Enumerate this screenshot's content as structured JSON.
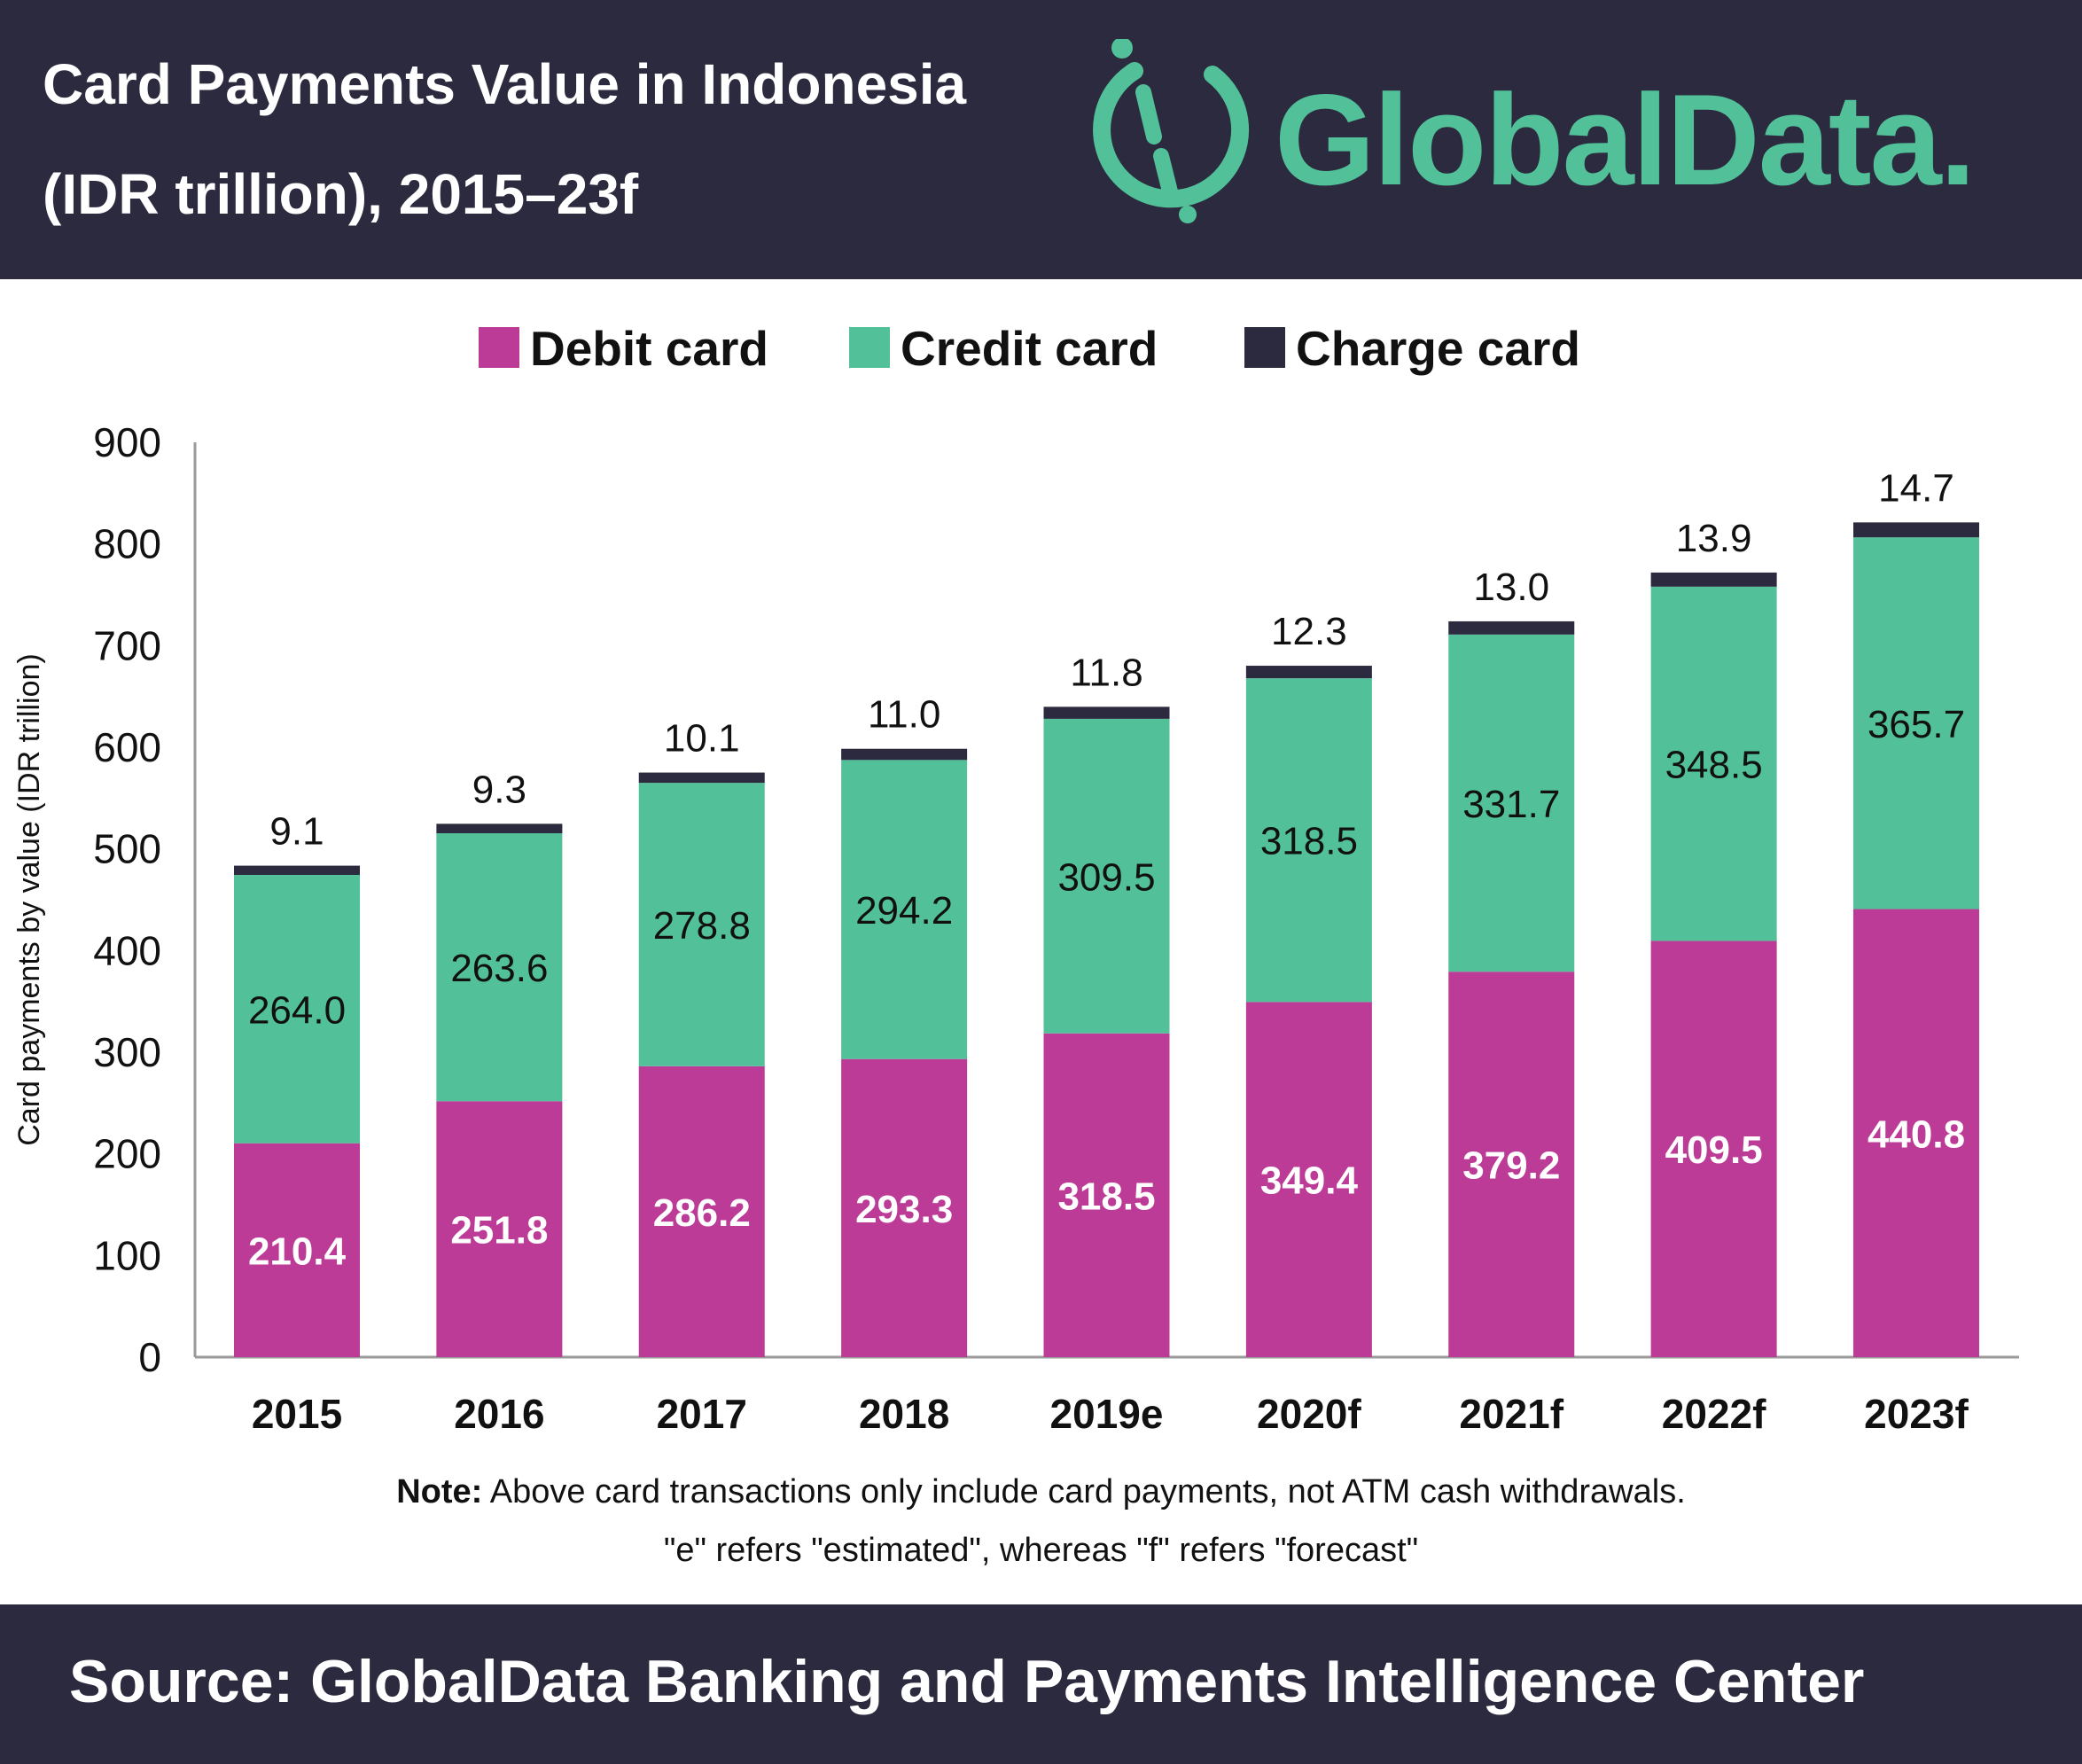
{
  "header": {
    "title_line1": "Card Payments Value in Indonesia",
    "title_line2": "(IDR trillion), 2015–23f",
    "logo_text": "GlobalData."
  },
  "legend": {
    "debit": "Debit card",
    "credit": "Credit card",
    "charge": "Charge card"
  },
  "chart_data": {
    "type": "bar",
    "stacked": true,
    "title": "Card Payments Value in Indonesia (IDR trillion), 2015–23f",
    "xlabel": "",
    "ylabel": "Card payments by value (IDR trillion)",
    "ylim": [
      0,
      900
    ],
    "yticks": [
      0,
      100,
      200,
      300,
      400,
      500,
      600,
      700,
      800,
      900
    ],
    "categories": [
      "2015",
      "2016",
      "2017",
      "2018",
      "2019e",
      "2020f",
      "2021f",
      "2022f",
      "2023f"
    ],
    "series": [
      {
        "name": "Debit card",
        "color": "#bc3b97",
        "values": [
          210.4,
          251.8,
          286.2,
          293.3,
          318.5,
          349.4,
          379.2,
          409.5,
          440.8
        ]
      },
      {
        "name": "Credit card",
        "color": "#52c199",
        "values": [
          264.0,
          263.6,
          278.8,
          294.2,
          309.5,
          318.5,
          331.7,
          348.5,
          365.7
        ]
      },
      {
        "name": "Charge card",
        "color": "#2b2a3e",
        "values": [
          9.1,
          9.3,
          10.1,
          11.0,
          11.8,
          12.3,
          13.0,
          13.9,
          14.7
        ]
      }
    ],
    "grid": false,
    "legend_position": "top"
  },
  "notes": {
    "label": "Note:",
    "line1": " Above card transactions only include card payments, not ATM cash withdrawals.",
    "line2": "\"e\" refers \"estimated\", whereas \"f\" refers \"forecast\""
  },
  "footer": {
    "source": "Source:  GlobalData Banking and Payments Intelligence Center"
  },
  "colors": {
    "navy": "#2b2a3e",
    "green": "#52c199",
    "magenta": "#bc3b97"
  }
}
